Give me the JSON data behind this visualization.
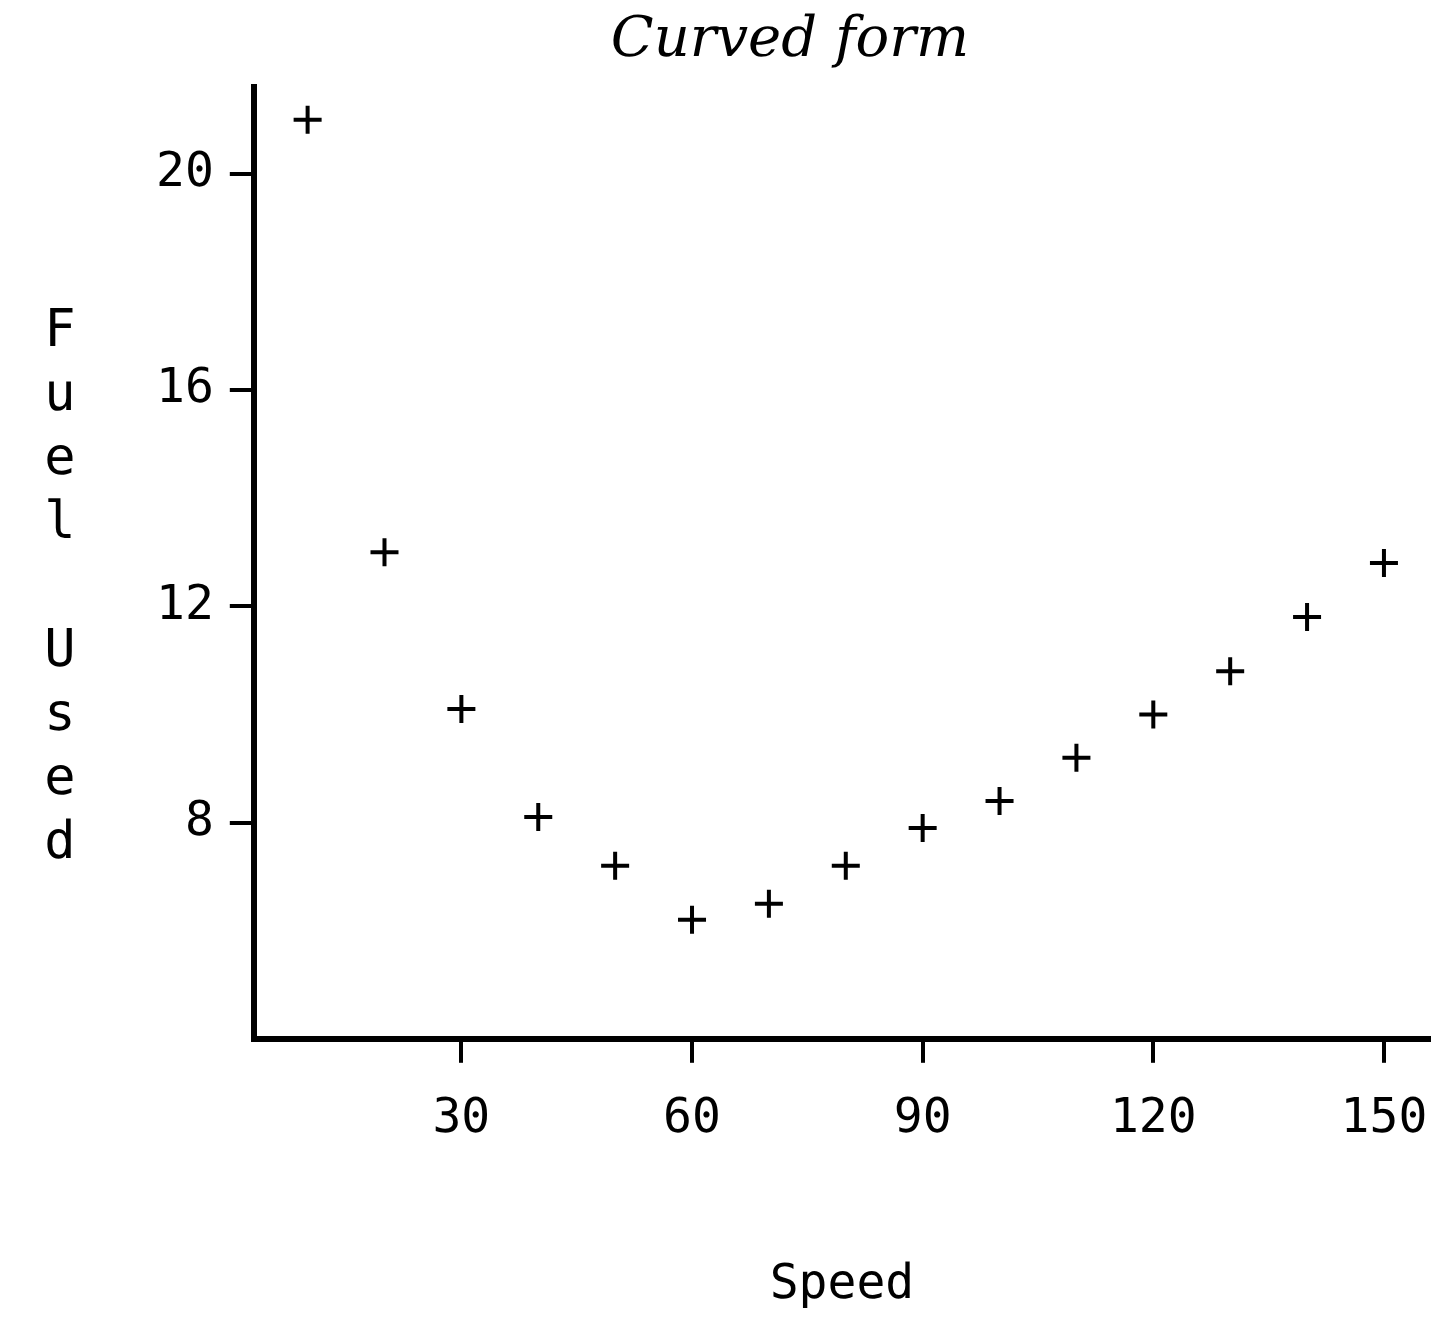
{
  "chart_data": {
    "type": "scatter",
    "title": "Curved form",
    "xlabel": "Speed",
    "ylabel": "Fuel Used",
    "x": [
      10,
      20,
      30,
      40,
      50,
      60,
      70,
      80,
      90,
      100,
      110,
      120,
      130,
      140,
      150
    ],
    "values": [
      21,
      13,
      10.1,
      8.1,
      7.2,
      6.2,
      6.5,
      7.2,
      7.9,
      8.4,
      9.2,
      10,
      10.8,
      11.8,
      12.8
    ],
    "color": "#000000",
    "marker": "cross",
    "grid": false,
    "legend": false,
    "xlim": [
      3,
      156
    ],
    "xticks": [
      30,
      60,
      90,
      120,
      150
    ],
    "ylim": [
      4,
      21.6
    ],
    "yticks": [
      8,
      12,
      16,
      20
    ]
  }
}
